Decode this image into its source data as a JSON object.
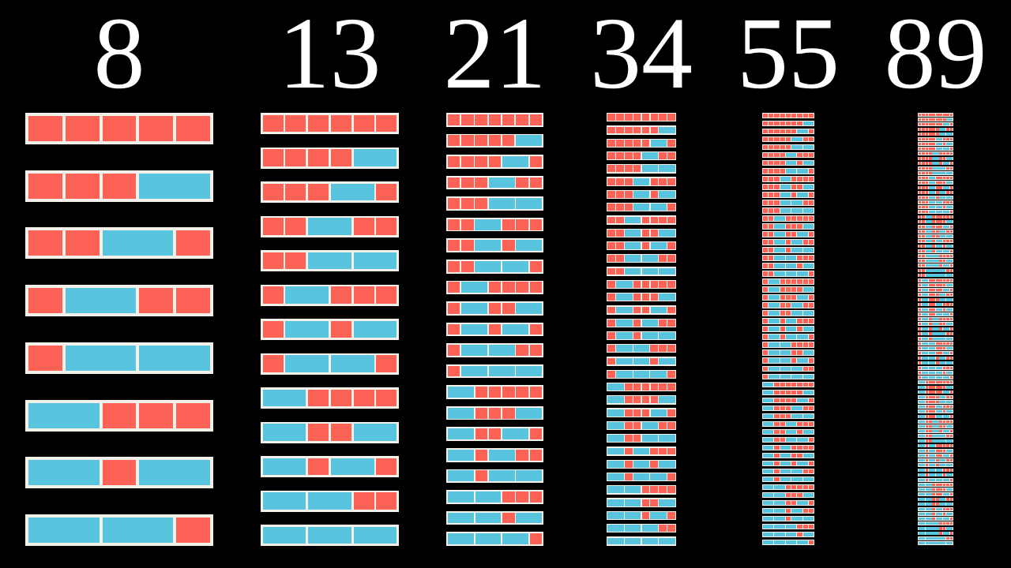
{
  "colors": {
    "background": "#000000",
    "frame_white": "#F3F0E9",
    "square_red": "#FC6255",
    "domino_blue": "#58C4DD",
    "header_text": "#FFFFFF"
  },
  "chart": {
    "type": "tiling-diagram",
    "columns": [
      {
        "label": "8",
        "strip_length": 5,
        "count": 8,
        "tilings": [
          "11111",
          "1112",
          "1121",
          "1211",
          "122",
          "2111",
          "212",
          "221"
        ]
      },
      {
        "label": "13",
        "strip_length": 6,
        "count": 13,
        "tilings": [
          "111111",
          "11112",
          "11121",
          "11211",
          "1122",
          "12111",
          "1212",
          "1221",
          "21111",
          "2112",
          "2121",
          "2211",
          "222"
        ]
      },
      {
        "label": "21",
        "strip_length": 7,
        "count": 21,
        "tilings": [
          "1111111",
          "111112",
          "111121",
          "111211",
          "11122",
          "112111",
          "11212",
          "11221",
          "121111",
          "12112",
          "12121",
          "12211",
          "1222",
          "211111",
          "21112",
          "21121",
          "21211",
          "2122",
          "22111",
          "2212",
          "2221"
        ]
      },
      {
        "label": "34",
        "strip_length": 8,
        "count": 34,
        "tilings": [
          "11111111",
          "1111112",
          "1111121",
          "1111211",
          "111122",
          "1112111",
          "111212",
          "111221",
          "1121111",
          "112112",
          "112121",
          "112211",
          "11222",
          "1211111",
          "121112",
          "121121",
          "121211",
          "12122",
          "122111",
          "12212",
          "12221",
          "2111111",
          "211112",
          "211121",
          "211211",
          "21122",
          "212111",
          "21212",
          "21221",
          "221111",
          "22112",
          "22121",
          "22211",
          "2222"
        ]
      },
      {
        "label": "55",
        "strip_length": 9,
        "count": 55,
        "tilings": [
          "111111111",
          "11111112",
          "11111121",
          "11111211",
          "1111122",
          "11112111",
          "1111212",
          "1111221",
          "11121111",
          "1112112",
          "1112121",
          "1112211",
          "111222",
          "11211111",
          "1121112",
          "1121121",
          "1121211",
          "112122",
          "1122111",
          "112212",
          "112221",
          "12111111",
          "1211112",
          "1211121",
          "1211211",
          "121122",
          "1212111",
          "121212",
          "121221",
          "1221111",
          "122112",
          "122121",
          "122211",
          "12222",
          "21111111",
          "2111112",
          "2111121",
          "2111211",
          "211122",
          "2112111",
          "211212",
          "211221",
          "2121111",
          "212112",
          "212121",
          "212211",
          "21222",
          "2211111",
          "221112",
          "221121",
          "221211",
          "22122",
          "222111",
          "22212",
          "22221"
        ]
      },
      {
        "label": "89",
        "strip_length": 10,
        "count": 89,
        "tilings": [
          "1111111111",
          "111111112",
          "111111121",
          "111111211",
          "11111122",
          "111112111",
          "11111212",
          "11111221",
          "111121111",
          "11112112",
          "11112121",
          "11112211",
          "1111222",
          "111211111",
          "11121112",
          "11121121",
          "11121211",
          "1112122",
          "11122111",
          "1112212",
          "1112221",
          "112111111",
          "11211112",
          "11211121",
          "11211211",
          "1121122",
          "11212111",
          "1121212",
          "1121221",
          "11221111",
          "1122112",
          "1122121",
          "1122211",
          "112222",
          "121111111",
          "12111112",
          "12111121",
          "12111211",
          "1211122",
          "12112111",
          "1211212",
          "1211221",
          "12121111",
          "1212112",
          "1212121",
          "1212211",
          "121222",
          "12211111",
          "1221112",
          "1221121",
          "1221211",
          "122122",
          "1222111",
          "122212",
          "122221",
          "211111111",
          "21111112",
          "21111121",
          "21111211",
          "2111122",
          "21112111",
          "2111212",
          "2111221",
          "21121111",
          "2112112",
          "2112121",
          "2112211",
          "211222",
          "21211111",
          "2121112",
          "2121121",
          "2121211",
          "212122",
          "2122111",
          "212212",
          "212221",
          "22111111",
          "2211112",
          "2211121",
          "2211211",
          "221122",
          "2212111",
          "221212",
          "221221",
          "2221111",
          "222112",
          "222121",
          "222211",
          "22222"
        ]
      }
    ]
  }
}
